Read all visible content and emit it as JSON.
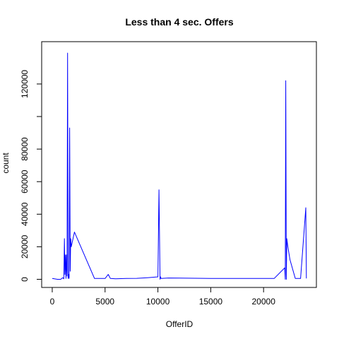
{
  "chart_data": {
    "type": "line",
    "title": "Less than 4 sec. Offers",
    "xlabel": "OfferID",
    "ylabel": "count",
    "xlim": [
      -1000,
      25000
    ],
    "ylim": [
      -5000,
      146000
    ],
    "x_ticks": [
      0,
      5000,
      10000,
      15000,
      20000
    ],
    "x_tick_labels": [
      "0",
      "5000",
      "10000",
      "15000",
      "20000"
    ],
    "y_ticks": [
      0,
      20000,
      40000,
      60000,
      80000,
      100000,
      120000
    ],
    "y_tick_labels": [
      "0",
      "20000",
      "40000",
      "60000",
      "80000",
      "",
      "120000"
    ],
    "grid": false,
    "color": "#0000ff",
    "series": [
      {
        "x": [
          0,
          500,
          800,
          1000,
          1100,
          1150,
          1200,
          1250,
          1300,
          1350,
          1400,
          1450,
          1500,
          1550,
          1600,
          1650,
          1700,
          1750,
          1800,
          2100,
          4000,
          5000,
          5300,
          5500,
          6000,
          7000,
          8000,
          9000,
          10000,
          10100,
          10150,
          10200,
          10250,
          10300,
          11000,
          15000,
          21000,
          22000,
          22050,
          22100,
          22150,
          22200,
          22300,
          22500,
          23000,
          23500,
          24000,
          24050
        ],
        "y": [
          500,
          0,
          0,
          1000,
          300,
          25000,
          3000,
          15000,
          500,
          15000,
          2000,
          139000,
          500,
          3000,
          500,
          93000,
          5000,
          25000,
          20000,
          29000,
          500,
          500,
          3000,
          500,
          300,
          500,
          600,
          1000,
          1500,
          55000,
          30000,
          0,
          1500,
          500,
          800,
          500,
          500,
          7000,
          0,
          122000,
          0,
          25000,
          20000,
          12000,
          500,
          500,
          44000,
          500
        ]
      }
    ]
  }
}
